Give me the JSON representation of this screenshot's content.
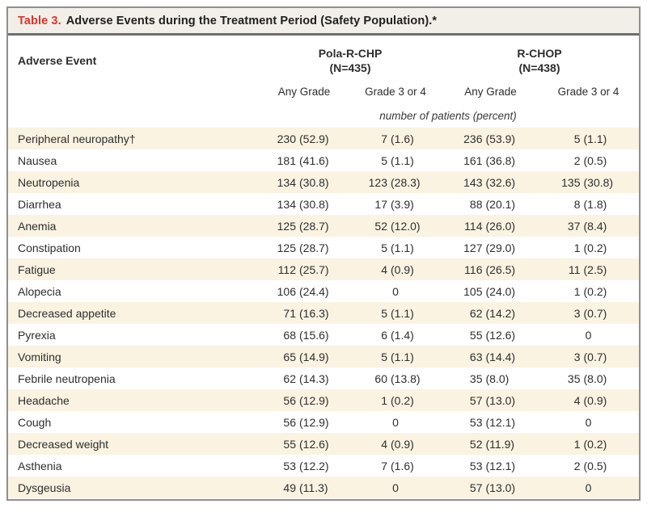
{
  "title": {
    "label": "Table 3.",
    "text": "Adverse Events during the Treatment Period (Safety Population).*"
  },
  "header": {
    "row_label": "Adverse Event",
    "groups": [
      {
        "name": "Pola-R-CHP",
        "n": "(N=435)"
      },
      {
        "name": "R-CHOP",
        "n": "(N=438)"
      }
    ],
    "subcolumns": [
      "Any Grade",
      "Grade 3 or 4",
      "Any Grade",
      "Grade 3 or 4"
    ],
    "units_note": "number of patients (percent)"
  },
  "table": {
    "rows": [
      {
        "event": "Peripheral neuropathy†",
        "values": [
          "230 (52.9)",
          "7 (1.6)",
          "236 (53.9)",
          "5 (1.1)"
        ]
      },
      {
        "event": "Nausea",
        "values": [
          "181 (41.6)",
          "5 (1.1)",
          "161 (36.8)",
          "2 (0.5)"
        ]
      },
      {
        "event": "Neutropenia",
        "values": [
          "134 (30.8)",
          "123 (28.3)",
          "143 (32.6)",
          "135 (30.8)"
        ]
      },
      {
        "event": "Diarrhea",
        "values": [
          "134 (30.8)",
          "17 (3.9)",
          "88 (20.1)",
          "8 (1.8)"
        ]
      },
      {
        "event": "Anemia",
        "values": [
          "125 (28.7)",
          "52 (12.0)",
          "114 (26.0)",
          "37 (8.4)"
        ]
      },
      {
        "event": "Constipation",
        "values": [
          "125 (28.7)",
          "5 (1.1)",
          "127 (29.0)",
          "1 (0.2)"
        ]
      },
      {
        "event": "Fatigue",
        "values": [
          "112 (25.7)",
          "4 (0.9)",
          "116 (26.5)",
          "11 (2.5)"
        ]
      },
      {
        "event": "Alopecia",
        "values": [
          "106 (24.4)",
          "0",
          "105 (24.0)",
          "1 (0.2)"
        ]
      },
      {
        "event": "Decreased appetite",
        "values": [
          "71 (16.3)",
          "5 (1.1)",
          "62 (14.2)",
          "3 (0.7)"
        ]
      },
      {
        "event": "Pyrexia",
        "values": [
          "68 (15.6)",
          "6 (1.4)",
          "55 (12.6)",
          "0"
        ]
      },
      {
        "event": "Vomiting",
        "values": [
          "65 (14.9)",
          "5 (1.1)",
          "63 (14.4)",
          "3 (0.7)"
        ]
      },
      {
        "event": "Febrile neutropenia",
        "values": [
          "62 (14.3)",
          "60 (13.8)",
          "35 (8.0)",
          "35 (8.0)"
        ]
      },
      {
        "event": "Headache",
        "values": [
          "56 (12.9)",
          "1 (0.2)",
          "57 (13.0)",
          "4 (0.9)"
        ]
      },
      {
        "event": "Cough",
        "values": [
          "56 (12.9)",
          "0",
          "53 (12.1)",
          "0"
        ]
      },
      {
        "event": "Decreased weight",
        "values": [
          "55 (12.6)",
          "4 (0.9)",
          "52 (11.9)",
          "1 (0.2)"
        ]
      },
      {
        "event": "Asthenia",
        "values": [
          "53 (12.2)",
          "7 (1.6)",
          "53 (12.1)",
          "2 (0.5)"
        ]
      },
      {
        "event": "Dysgeusia",
        "values": [
          "49 (11.3)",
          "0",
          "57 (13.0)",
          "0"
        ]
      }
    ]
  },
  "colors": {
    "accent_red": "#e0342b",
    "title_band_bg": "#f2efe8",
    "stripe_bg": "#faf3e2",
    "border_gray": "#8f8f8f",
    "rule_gray": "#6e6e6e",
    "text": "#2e2e2e"
  }
}
